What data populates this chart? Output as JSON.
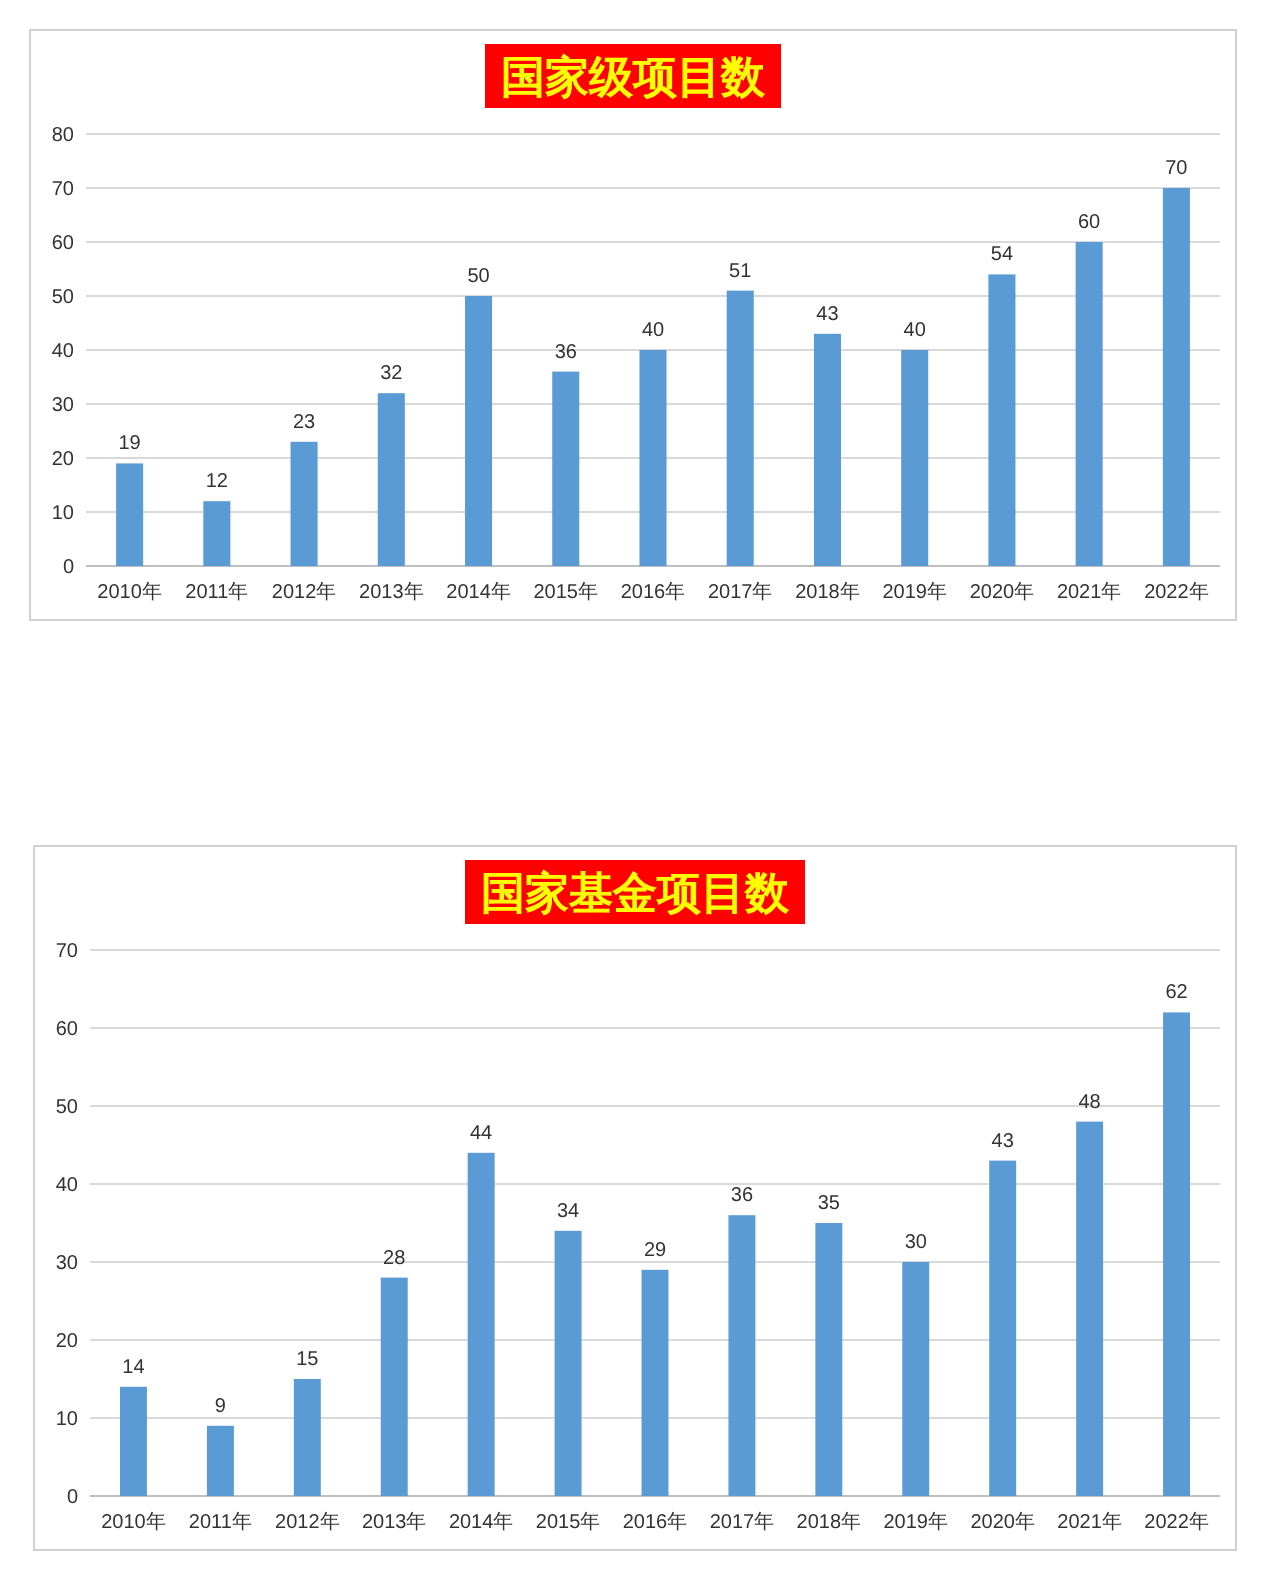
{
  "chart_data": [
    {
      "type": "bar",
      "title": "国家级项目数",
      "categories": [
        "2010年",
        "2011年",
        "2012年",
        "2013年",
        "2014年",
        "2015年",
        "2016年",
        "2017年",
        "2018年",
        "2019年",
        "2020年",
        "2021年",
        "2022年"
      ],
      "values": [
        19,
        12,
        23,
        32,
        50,
        36,
        40,
        51,
        43,
        40,
        54,
        60,
        70
      ],
      "color": "#5b9bd5",
      "ylim": [
        0,
        80
      ],
      "yticks": [
        0,
        10,
        20,
        30,
        40,
        50,
        60,
        70,
        80
      ],
      "grid": "y",
      "data_labels": true
    },
    {
      "type": "bar",
      "title": "国家基金项目数",
      "categories": [
        "2010年",
        "2011年",
        "2012年",
        "2013年",
        "2014年",
        "2015年",
        "2016年",
        "2017年",
        "2018年",
        "2019年",
        "2020年",
        "2021年",
        "2022年"
      ],
      "values": [
        14,
        9,
        15,
        28,
        44,
        34,
        29,
        36,
        35,
        30,
        43,
        48,
        62
      ],
      "color": "#5b9bd5",
      "ylim": [
        0,
        70
      ],
      "yticks": [
        0,
        10,
        20,
        30,
        40,
        50,
        60,
        70
      ],
      "grid": "y",
      "data_labels": true
    }
  ]
}
